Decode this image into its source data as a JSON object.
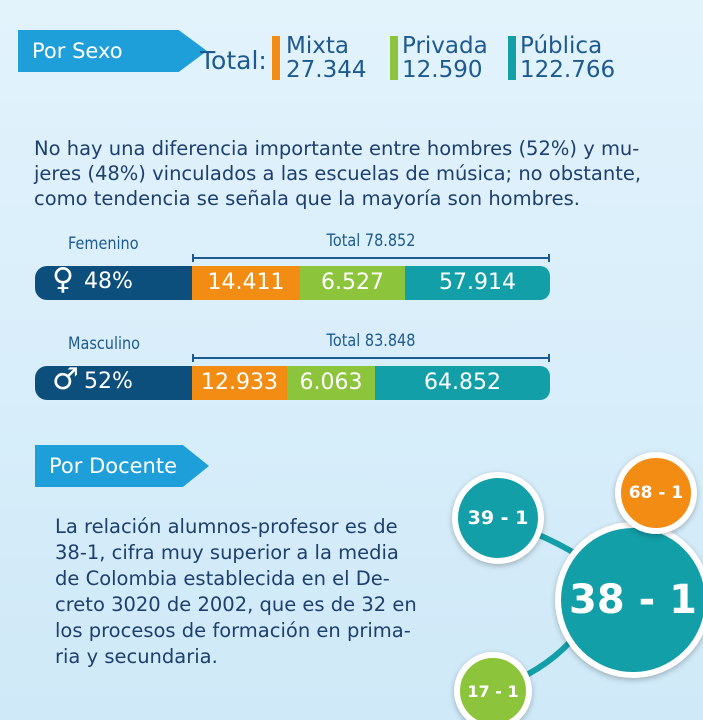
{
  "sexo": {
    "tab": "Por Sexo",
    "total_label": "Total:",
    "legend": [
      {
        "name": "Mixta",
        "value": "27.344"
      },
      {
        "name": "Privada",
        "value": "12.590"
      },
      {
        "name": "Pública",
        "value": "122.766"
      }
    ],
    "paragraph": [
      "No hay una diferencia importante entre hombres (52%) y mu-",
      "jeres (48%) vinculados a las escuelas de música; no obstante,",
      "como tendencia se señala que la mayoría son hombres."
    ],
    "rows": [
      {
        "label": "Femenino",
        "total": "Total 78.852",
        "symbol": "♀",
        "percent": "48%",
        "segments": [
          "14.411",
          "6.527",
          "57.914"
        ]
      },
      {
        "label": "Masculino",
        "total": "Total 83.848",
        "symbol": "♂",
        "percent": "52%",
        "segments": [
          "12.933",
          "6.063",
          "64.852"
        ]
      }
    ]
  },
  "docente": {
    "tab": "Por Docente",
    "paragraph": [
      "La relación alumnos-profesor es de",
      "38-1, cifra muy superior a la media",
      "de Colombia establecida en el De-",
      "creto 3020 de 2002, que es de 32 en",
      "los procesos de formación en prima-",
      "ria y secundaria."
    ],
    "circles": {
      "main": "38 - 1",
      "a": "39 - 1",
      "b": "68 - 1",
      "c": "17 - 1"
    }
  }
}
